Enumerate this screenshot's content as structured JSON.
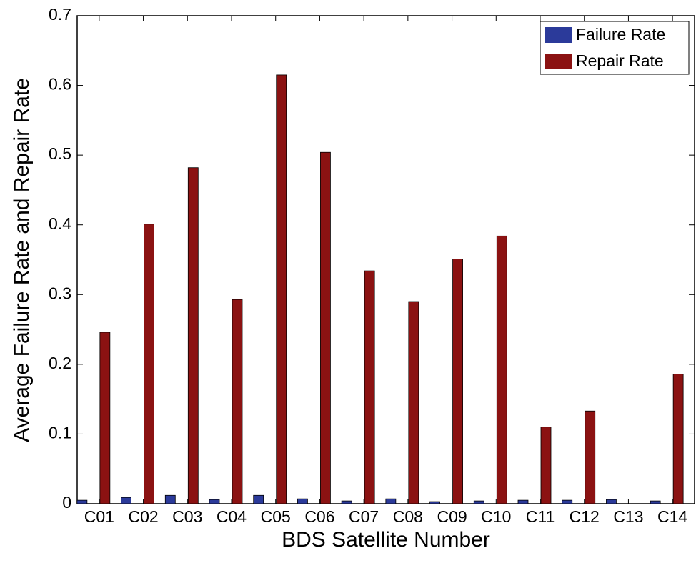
{
  "chart_data": {
    "type": "bar",
    "title": "",
    "xlabel": "BDS Satellite Number",
    "ylabel": "Average Failure Rate and Repair Rate",
    "ylim": [
      0,
      0.7
    ],
    "yticks": [
      0,
      0.1,
      0.2,
      0.3,
      0.4,
      0.5,
      0.6,
      0.7
    ],
    "ytick_labels": [
      "0",
      "0.1",
      "0.2",
      "0.3",
      "0.4",
      "0.5",
      "0.6",
      "0.7"
    ],
    "categories": [
      "C01",
      "C02",
      "C03",
      "C04",
      "C05",
      "C06",
      "C07",
      "C08",
      "C09",
      "C10",
      "C11",
      "C12",
      "C13",
      "C14"
    ],
    "series": [
      {
        "name": "Failure Rate",
        "color": "#2b3a9a",
        "values": [
          0.005,
          0.009,
          0.012,
          0.006,
          0.012,
          0.007,
          0.004,
          0.007,
          0.003,
          0.004,
          0.005,
          0.005,
          0.006,
          0.004
        ]
      },
      {
        "name": "Repair Rate",
        "color": "#8b1212",
        "values": [
          0.246,
          0.401,
          0.482,
          0.293,
          0.615,
          0.504,
          0.334,
          0.29,
          0.351,
          0.384,
          0.11,
          0.133,
          0,
          0.186
        ]
      }
    ],
    "grid": false,
    "legend_position": "top-right"
  }
}
